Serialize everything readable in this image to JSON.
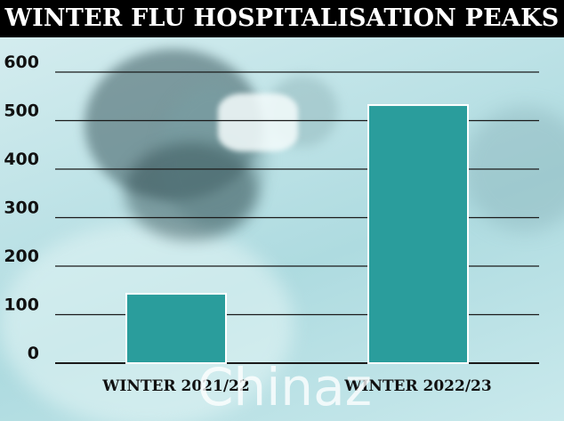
{
  "chart_data": {
    "type": "bar",
    "title": "WINTER FLU HOSPITALISATION PEAKS",
    "categories": [
      "WINTER 2021/22",
      "WINTER 2022/23"
    ],
    "values": [
      143,
      532
    ],
    "ylim": [
      0,
      600
    ],
    "yticks": [
      0,
      100,
      200,
      300,
      400,
      500,
      600
    ],
    "grid": true,
    "xlabel": "",
    "ylabel": "",
    "bar_color": "#2a9d9c",
    "bar_outline": "#ffffff"
  },
  "watermark": "Chinaz"
}
